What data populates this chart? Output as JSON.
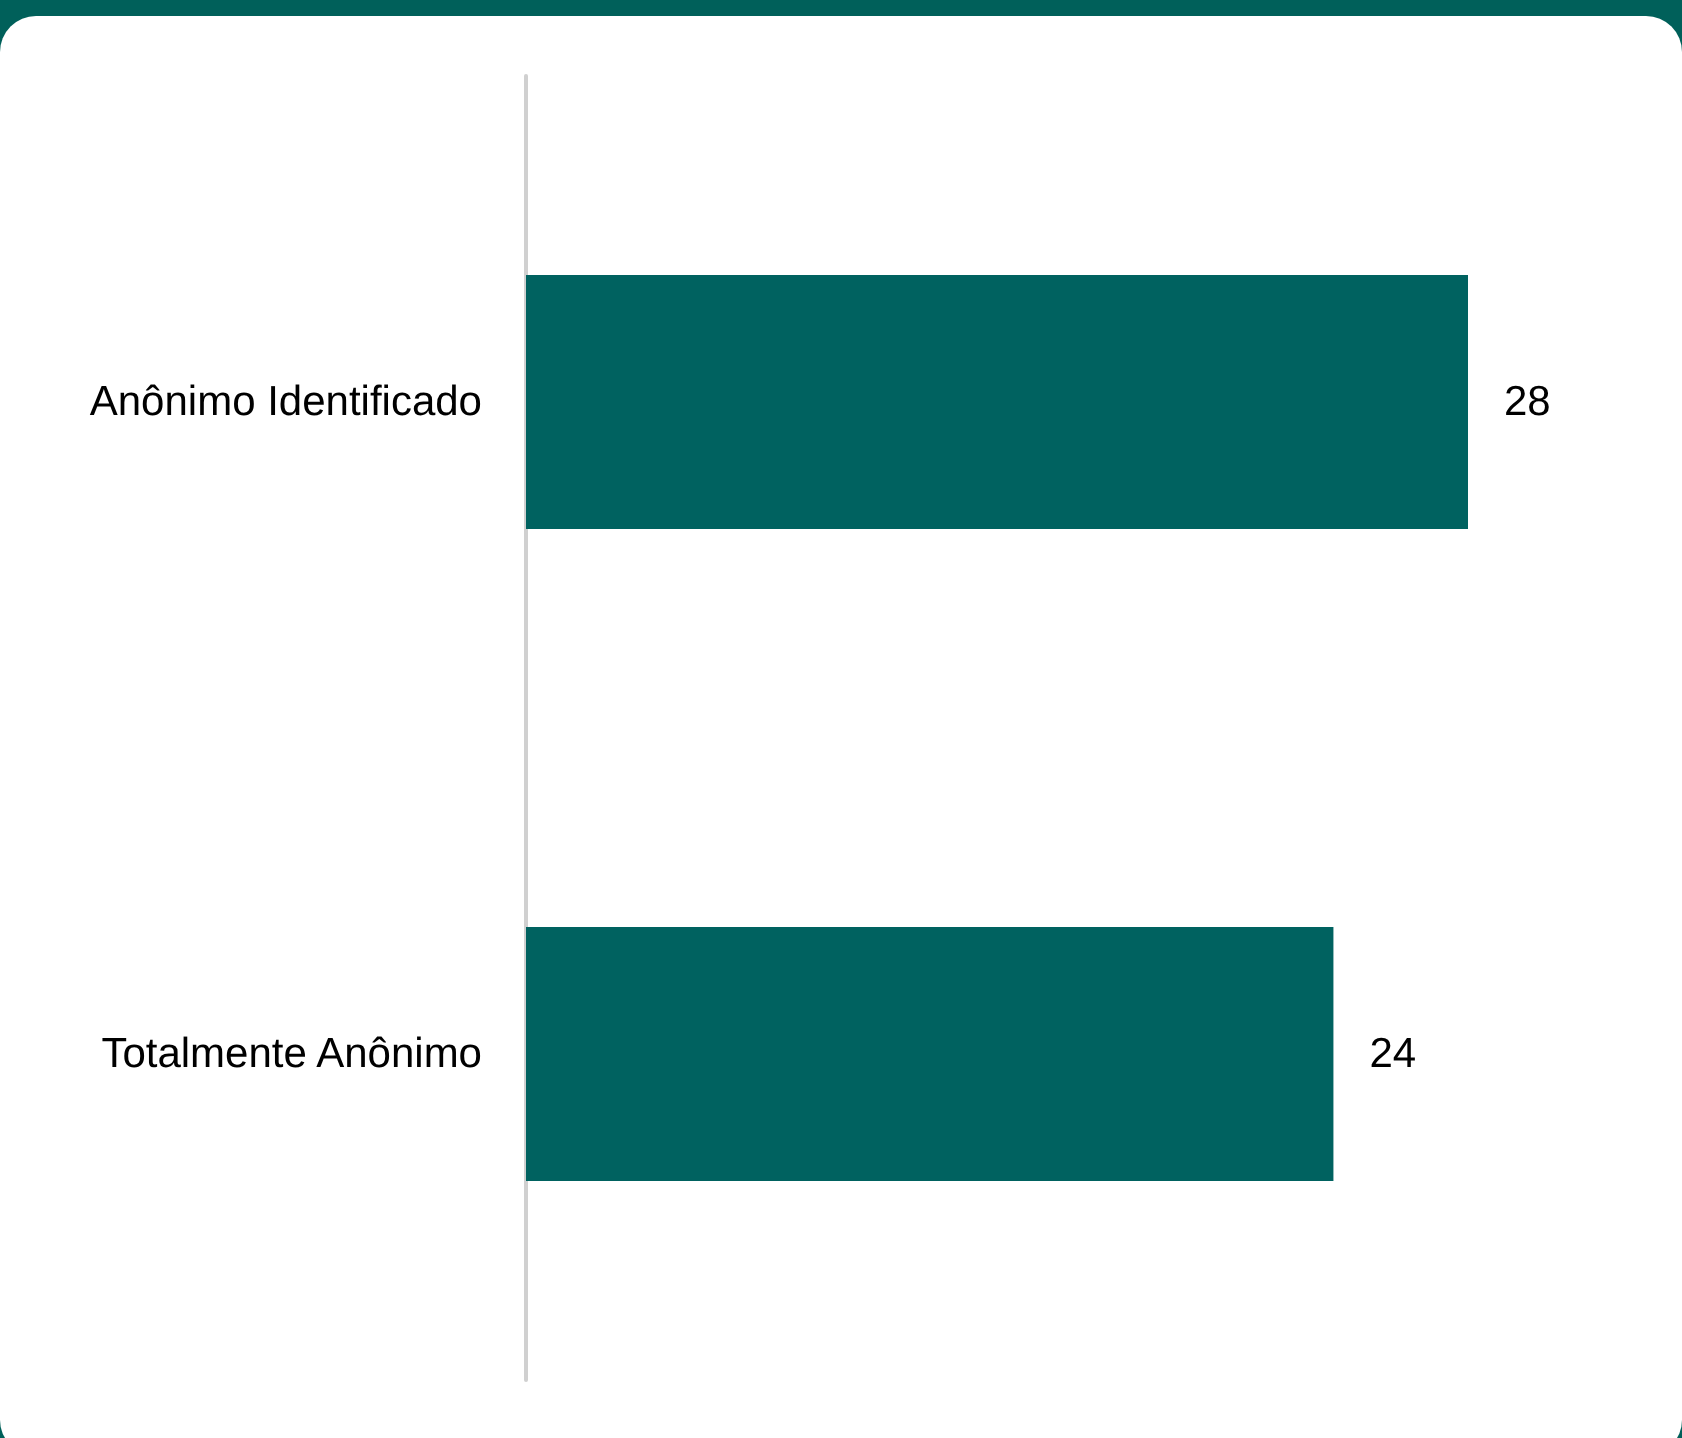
{
  "chart_data": {
    "type": "bar",
    "orientation": "horizontal",
    "categories": [
      "Anônimo Identificado",
      "Totalmente Anônimo"
    ],
    "values": [
      28,
      24
    ],
    "color": "#006260",
    "tick_labels": "y",
    "grid": false,
    "data_labels": true
  }
}
